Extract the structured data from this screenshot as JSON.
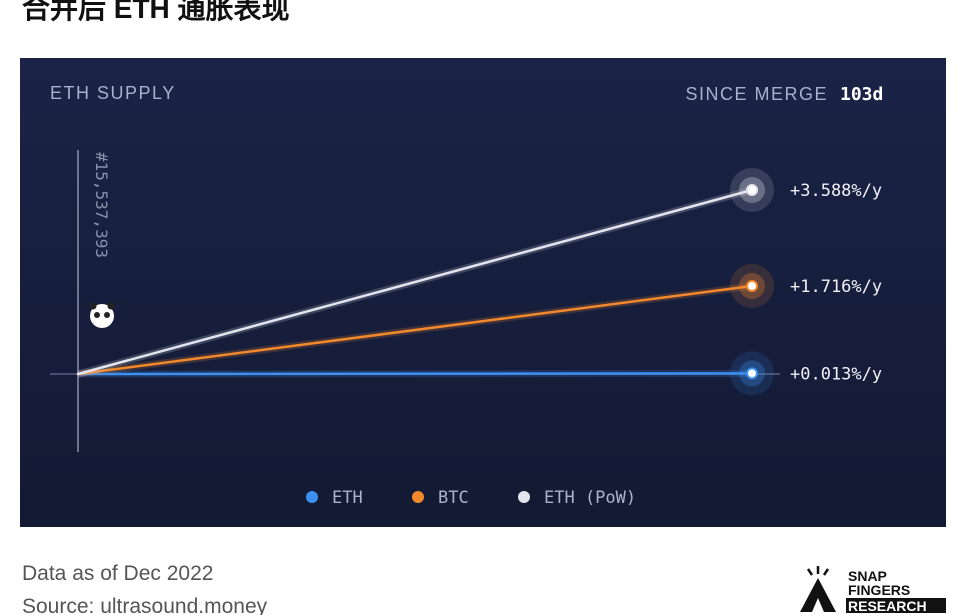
{
  "title": "合并后 ETH 通胀表现",
  "chart_data": {
    "type": "line",
    "title": "ETH SUPPLY",
    "period_label": "SINCE MERGE",
    "period_value": "103d",
    "annotation": "#15,537,393",
    "series": [
      {
        "name": "ETH",
        "color": "#3d8ff0",
        "values": [
          0.013
        ],
        "value_labels": [
          "+0.013%/y"
        ]
      },
      {
        "name": "BTC",
        "color": "#f2882c",
        "values": [
          1.716
        ],
        "value_labels": [
          "+1.716%/y"
        ]
      },
      {
        "name": "ETH (PoW)",
        "color": "#e4e4ee",
        "values": [
          3.588
        ],
        "value_labels": [
          "+3.588%/y"
        ]
      }
    ]
  },
  "footer": {
    "note": "Data as of Dec 2022",
    "source": "Source: ultrasound.money"
  },
  "logo": [
    "SNAP",
    "FINGERS",
    "RESEARCH"
  ]
}
